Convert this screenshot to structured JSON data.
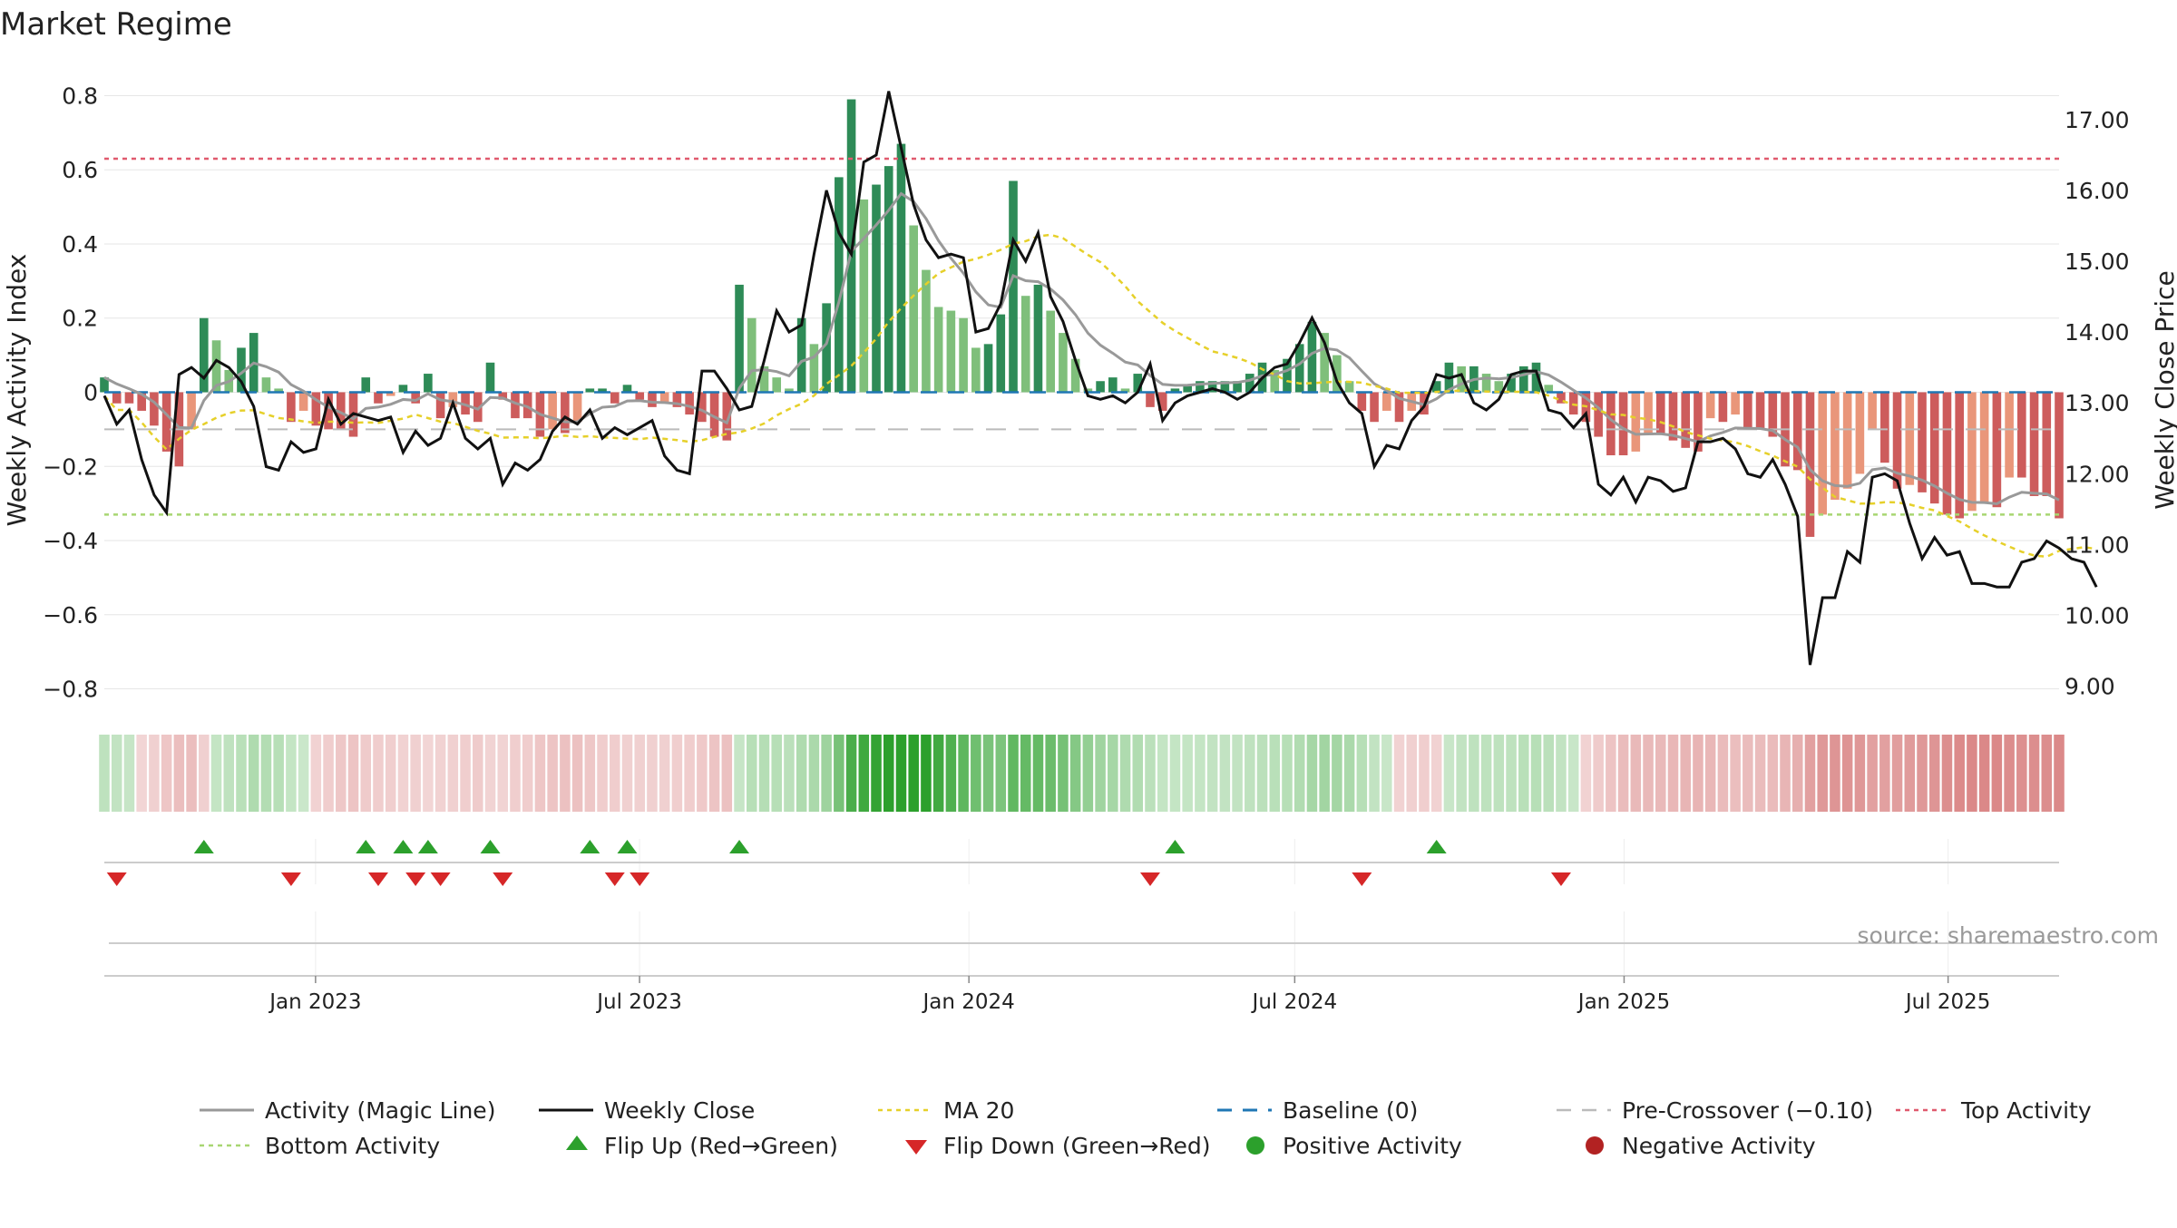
{
  "title": "Market Regime",
  "source": "source: sharemaestro.com",
  "chart_data": {
    "type": "bar",
    "y_left_label": "Weekly Activity Index",
    "y_right_label": "Weekly Close Price",
    "ylim_left": [
      -0.85,
      0.85
    ],
    "ylim_right": [
      8.7,
      17.6
    ],
    "x_range": [
      "2022-09-05",
      "2025-09-01"
    ],
    "left_ticks": [
      "0.8",
      "0.6",
      "0.4",
      "0.2",
      "0",
      "−0.2",
      "−0.4",
      "−0.6",
      "−0.8"
    ],
    "left_tick_values": [
      0.8,
      0.6,
      0.4,
      0.2,
      0,
      -0.2,
      -0.4,
      -0.6,
      -0.8
    ],
    "right_ticks": [
      "17.00",
      "16.00",
      "15.00",
      "14.00",
      "13.00",
      "12.00",
      "11.00",
      "10.00",
      "9.00"
    ],
    "right_tick_values": [
      17,
      16,
      15,
      14,
      13,
      12,
      11,
      10,
      9
    ],
    "x_ticks": [
      {
        "date": "2023-01-01",
        "label": "Jan 2023"
      },
      {
        "date": "2023-07-01",
        "label": "Jul 2023"
      },
      {
        "date": "2024-01-01",
        "label": "Jan 2024"
      },
      {
        "date": "2024-07-01",
        "label": "Jul 2024"
      },
      {
        "date": "2025-01-01",
        "label": "Jan 2025"
      },
      {
        "date": "2025-07-01",
        "label": "Jul 2025"
      }
    ],
    "thresholds": {
      "top": 0.63,
      "bottom": -0.33,
      "pre_crossover": -0.1,
      "baseline": 0
    },
    "colors": {
      "strong_green": "#2e8b57",
      "light_green": "#7fbf7b",
      "strong_red": "#cd5c5c",
      "light_red": "#e9967a",
      "close": "#111111",
      "magic": "#999999",
      "ma20": "#e6d02a",
      "baseline": "#1f77b4",
      "pre": "#bbbbbb",
      "top": "#e05a6e",
      "bottom": "#a8d672",
      "flip_up": "#2ca02c",
      "flip_down": "#d62728",
      "pos": "#2ca02c",
      "neg": "#b22222"
    },
    "activity": [
      0.04,
      -0.03,
      -0.03,
      -0.05,
      -0.09,
      -0.16,
      -0.2,
      -0.1,
      0.2,
      0.14,
      0.06,
      0.12,
      0.16,
      0.04,
      0.01,
      -0.08,
      -0.05,
      -0.09,
      -0.1,
      -0.1,
      -0.12,
      0.04,
      -0.03,
      -0.01,
      0.02,
      -0.03,
      0.05,
      -0.07,
      -0.04,
      -0.06,
      -0.08,
      0.08,
      -0.02,
      -0.07,
      -0.07,
      -0.12,
      -0.1,
      -0.11,
      -0.08,
      0.01,
      0.01,
      -0.03,
      0.02,
      -0.02,
      -0.04,
      -0.03,
      -0.04,
      -0.06,
      -0.08,
      -0.12,
      -0.13,
      0.29,
      0.2,
      0.07,
      0.04,
      0.01,
      0.2,
      0.13,
      0.24,
      0.58,
      0.79,
      0.52,
      0.56,
      0.61,
      0.67,
      0.45,
      0.33,
      0.23,
      0.22,
      0.2,
      0.12,
      0.13,
      0.21,
      0.57,
      0.26,
      0.29,
      0.22,
      0.16,
      0.09,
      0.01,
      0.03,
      0.04,
      0.01,
      0.05,
      -0.04,
      -0.05,
      0.01,
      0.02,
      0.03,
      0.03,
      0.03,
      0.03,
      0.05,
      0.08,
      0.06,
      0.09,
      0.13,
      0.19,
      0.16,
      0.1,
      0.03,
      -0.05,
      -0.08,
      -0.05,
      -0.08,
      -0.05,
      -0.06,
      0.03,
      0.08,
      0.07,
      0.07,
      0.05,
      0.03,
      0.05,
      0.07,
      0.08,
      0.02,
      -0.03,
      -0.06,
      -0.08,
      -0.12,
      -0.17,
      -0.17,
      -0.16,
      -0.11,
      -0.11,
      -0.13,
      -0.15,
      -0.16,
      -0.07,
      -0.08,
      -0.06,
      -0.1,
      -0.1,
      -0.12,
      -0.2,
      -0.21,
      -0.39,
      -0.33,
      -0.29,
      -0.26,
      -0.22,
      -0.1,
      -0.19,
      -0.26,
      -0.25,
      -0.27,
      -0.3,
      -0.33,
      -0.34,
      -0.32,
      -0.3,
      -0.31,
      -0.23,
      -0.23,
      -0.28,
      -0.28,
      -0.34
    ],
    "close": [
      13.1,
      12.7,
      12.9,
      12.2,
      11.7,
      11.45,
      13.4,
      13.5,
      13.35,
      13.6,
      13.5,
      13.3,
      12.95,
      12.1,
      12.05,
      12.45,
      12.3,
      12.35,
      13.05,
      12.7,
      12.85,
      12.8,
      12.75,
      12.8,
      12.3,
      12.6,
      12.4,
      12.5,
      13.0,
      12.5,
      12.35,
      12.5,
      11.85,
      12.15,
      12.05,
      12.2,
      12.6,
      12.8,
      12.7,
      12.9,
      12.5,
      12.65,
      12.55,
      12.65,
      12.75,
      12.25,
      12.05,
      12.0,
      13.45,
      13.45,
      13.2,
      12.9,
      12.95,
      13.6,
      14.3,
      14.0,
      14.1,
      15.1,
      16.0,
      15.4,
      15.1,
      16.4,
      16.5,
      17.4,
      16.6,
      15.8,
      15.3,
      15.05,
      15.1,
      15.05,
      14.0,
      14.05,
      14.4,
      15.3,
      15.0,
      15.4,
      14.5,
      14.15,
      13.6,
      13.1,
      13.05,
      13.1,
      13.0,
      13.15,
      13.55,
      12.75,
      13.0,
      13.1,
      13.15,
      13.2,
      13.15,
      13.05,
      13.15,
      13.35,
      13.5,
      13.55,
      13.85,
      14.2,
      13.85,
      13.3,
      13.0,
      12.85,
      12.1,
      12.4,
      12.35,
      12.75,
      12.95,
      13.4,
      13.35,
      13.4,
      13.0,
      12.9,
      13.05,
      13.4,
      13.45,
      13.45,
      12.9,
      12.85,
      12.65,
      12.85,
      11.85,
      11.7,
      11.95,
      11.6,
      11.95,
      11.9,
      11.75,
      11.8,
      12.45,
      12.45,
      12.5,
      12.35,
      12.0,
      11.95,
      12.2,
      11.85,
      11.4,
      9.3,
      10.25,
      10.25,
      10.9,
      10.75,
      11.95,
      12.0,
      11.9,
      11.3,
      10.8,
      11.1,
      10.85,
      10.9,
      10.45,
      10.45,
      10.4,
      10.4,
      10.75,
      10.8,
      11.05,
      10.95,
      10.8,
      10.75,
      10.4
    ]
  },
  "legend": [
    {
      "key": "magic",
      "label": "Activity (Magic Line)"
    },
    {
      "key": "close",
      "label": "Weekly Close"
    },
    {
      "key": "ma20",
      "label": "MA 20"
    },
    {
      "key": "baseline",
      "label": "Baseline (0)"
    },
    {
      "key": "pre",
      "label": "Pre-Crossover (−0.10)"
    },
    {
      "key": "top",
      "label": "Top Activity"
    },
    {
      "key": "bottom",
      "label": "Bottom Activity"
    },
    {
      "key": "flip_up",
      "label": "Flip Up (Red→Green)"
    },
    {
      "key": "flip_down",
      "label": "Flip Down (Green→Red)"
    },
    {
      "key": "pos",
      "label": "Positive Activity"
    },
    {
      "key": "neg",
      "label": "Negative Activity"
    }
  ]
}
